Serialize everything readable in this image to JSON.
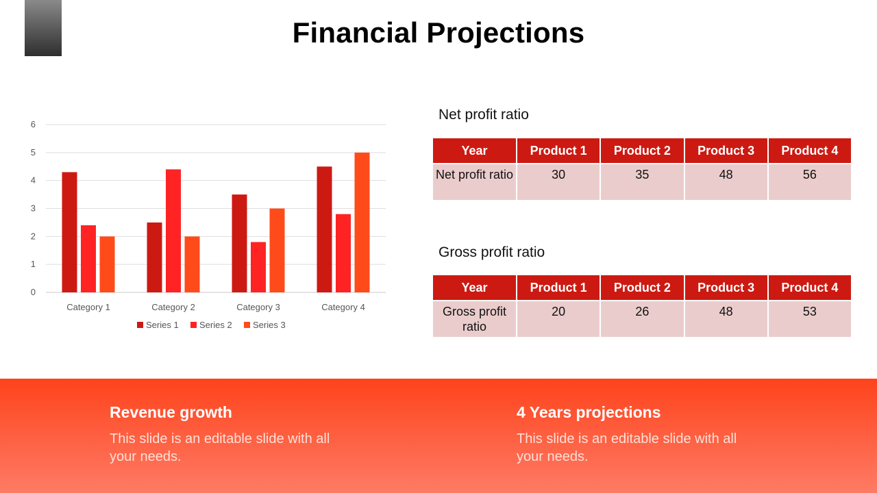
{
  "title": "Financial Projections",
  "colors": {
    "series1": "#cc1a12",
    "series2": "#ff2323",
    "series3": "#ff4b1a",
    "table_header": "#cc1a12",
    "table_cell": "#ebcccc"
  },
  "chart_data": {
    "type": "bar",
    "title": "",
    "categories": [
      "Category 1",
      "Category 2",
      "Category 3",
      "Category 4"
    ],
    "series": [
      {
        "name": "Series 1",
        "values": [
          4.3,
          2.5,
          3.5,
          4.5
        ]
      },
      {
        "name": "Series 2",
        "values": [
          2.4,
          4.4,
          1.8,
          2.8
        ]
      },
      {
        "name": "Series 3",
        "values": [
          2,
          2,
          3,
          5
        ]
      }
    ],
    "ylim": [
      0,
      6
    ],
    "yticks": [
      "0",
      "1",
      "2",
      "3",
      "4",
      "5",
      "6"
    ],
    "xlabel": "",
    "ylabel": "",
    "grid": true,
    "legend": "bottom"
  },
  "net_profit": {
    "heading": "Net profit ratio",
    "headers": [
      "Year",
      "Product 1",
      "Product 2",
      "Product 3",
      "Product 4"
    ],
    "row": [
      "Net profit ratio",
      "30",
      "35",
      "48",
      "56"
    ]
  },
  "gross_profit": {
    "heading": "Gross profit ratio",
    "headers": [
      "Year",
      "Product 1",
      "Product 2",
      "Product 3",
      "Product 4"
    ],
    "row": [
      "Gross profit ratio",
      "20",
      "26",
      "48",
      "53"
    ]
  },
  "footer": {
    "left": {
      "title": "Revenue growth",
      "text": "This slide is an editable slide with all your needs."
    },
    "right": {
      "title": "4 Years projections",
      "text": "This slide is an editable slide with all your needs."
    }
  }
}
